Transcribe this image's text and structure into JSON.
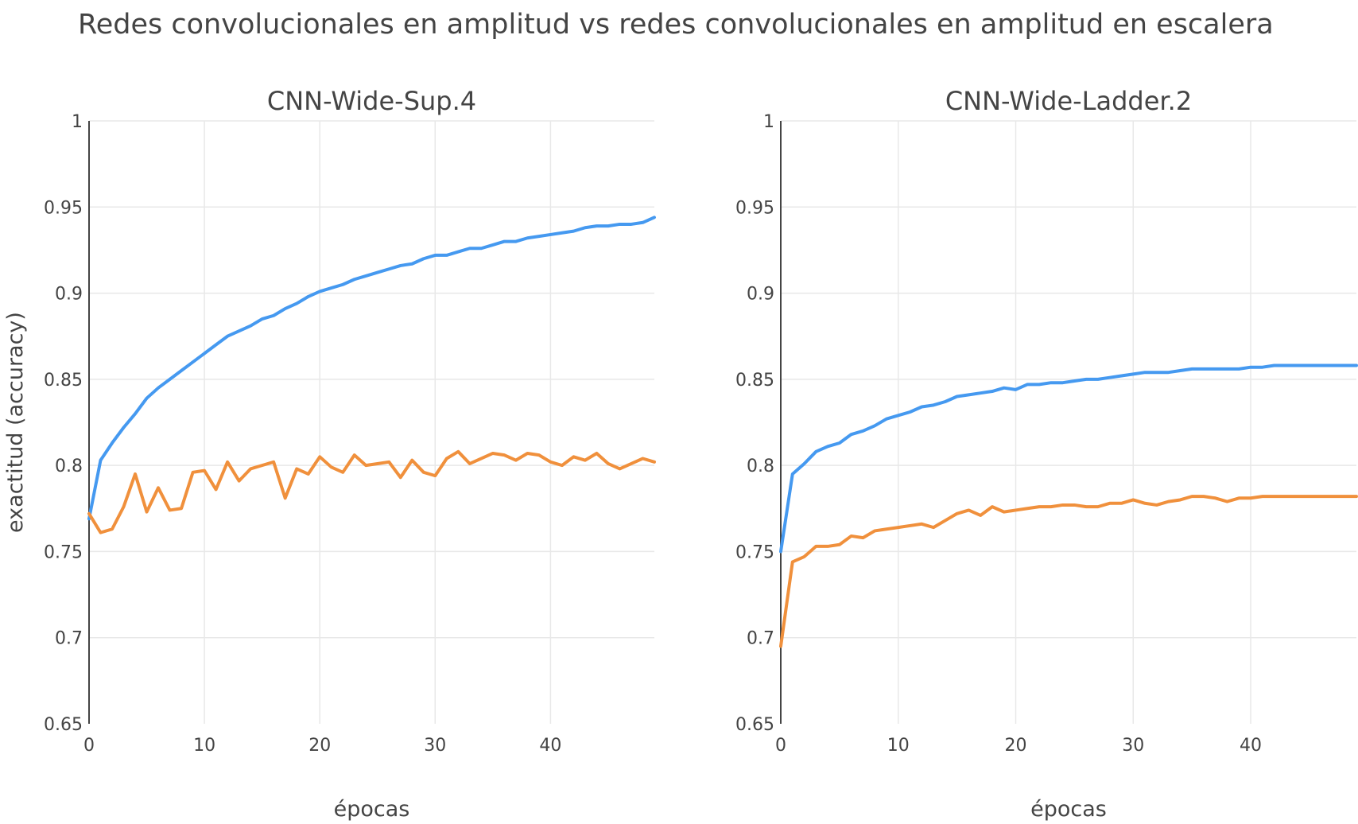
{
  "title": "Redes convolucionales en amplitud vs redes convolucionales en amplitud en escalera",
  "chart_data": [
    {
      "type": "line",
      "title": "CNN-Wide-Sup.4",
      "xlabel": "épocas",
      "ylabel": "exactitud (accuracy)",
      "xlim": [
        0,
        49
      ],
      "ylim": [
        0.65,
        1
      ],
      "xticks": [
        0,
        10,
        20,
        30,
        40
      ],
      "yticks": [
        0.65,
        0.7,
        0.75,
        0.8,
        0.85,
        0.9,
        0.95,
        1
      ],
      "ytick_labels": [
        "0.65",
        "0.7",
        "0.75",
        "0.8",
        "0.85",
        "0.9",
        "0.95",
        "1"
      ],
      "grid": true,
      "series": [
        {
          "color": "#4599f0",
          "x": [
            0,
            1,
            2,
            3,
            4,
            5,
            6,
            7,
            8,
            9,
            10,
            11,
            12,
            13,
            14,
            15,
            16,
            17,
            18,
            19,
            20,
            21,
            22,
            23,
            24,
            25,
            26,
            27,
            28,
            29,
            30,
            31,
            32,
            33,
            34,
            35,
            36,
            37,
            38,
            39,
            40,
            41,
            42,
            43,
            44,
            45,
            46,
            47,
            48,
            49
          ],
          "y": [
            0.769,
            0.803,
            0.813,
            0.822,
            0.83,
            0.839,
            0.845,
            0.85,
            0.855,
            0.86,
            0.865,
            0.87,
            0.875,
            0.878,
            0.881,
            0.885,
            0.887,
            0.891,
            0.894,
            0.898,
            0.901,
            0.903,
            0.905,
            0.908,
            0.91,
            0.912,
            0.914,
            0.916,
            0.917,
            0.92,
            0.922,
            0.922,
            0.924,
            0.926,
            0.926,
            0.928,
            0.93,
            0.93,
            0.932,
            0.933,
            0.934,
            0.935,
            0.936,
            0.938,
            0.939,
            0.939,
            0.94,
            0.94,
            0.941,
            0.944
          ]
        },
        {
          "color": "#f0903c",
          "x": [
            0,
            1,
            2,
            3,
            4,
            5,
            6,
            7,
            8,
            9,
            10,
            11,
            12,
            13,
            14,
            15,
            16,
            17,
            18,
            19,
            20,
            21,
            22,
            23,
            24,
            25,
            26,
            27,
            28,
            29,
            30,
            31,
            32,
            33,
            34,
            35,
            36,
            37,
            38,
            39,
            40,
            41,
            42,
            43,
            44,
            45,
            46,
            47,
            48,
            49
          ],
          "y": [
            0.772,
            0.761,
            0.763,
            0.776,
            0.795,
            0.773,
            0.787,
            0.774,
            0.775,
            0.796,
            0.797,
            0.786,
            0.802,
            0.791,
            0.798,
            0.8,
            0.802,
            0.781,
            0.798,
            0.795,
            0.805,
            0.799,
            0.796,
            0.806,
            0.8,
            0.801,
            0.802,
            0.793,
            0.803,
            0.796,
            0.794,
            0.804,
            0.808,
            0.801,
            0.804,
            0.807,
            0.806,
            0.803,
            0.807,
            0.806,
            0.802,
            0.8,
            0.805,
            0.803,
            0.807,
            0.801,
            0.798,
            0.801,
            0.804,
            0.802
          ]
        }
      ]
    },
    {
      "type": "line",
      "title": "CNN-Wide-Ladder.2",
      "xlabel": "épocas",
      "xlim": [
        0,
        49
      ],
      "ylim": [
        0.65,
        1
      ],
      "xticks": [
        0,
        10,
        20,
        30,
        40
      ],
      "yticks": [
        0.65,
        0.7,
        0.75,
        0.8,
        0.85,
        0.9,
        0.95,
        1
      ],
      "ytick_labels": [
        "0.65",
        "0.7",
        "0.75",
        "0.8",
        "0.85",
        "0.9",
        "0.95",
        "1"
      ],
      "grid": true,
      "series": [
        {
          "color": "#4599f0",
          "x": [
            0,
            1,
            2,
            3,
            4,
            5,
            6,
            7,
            8,
            9,
            10,
            11,
            12,
            13,
            14,
            15,
            16,
            17,
            18,
            19,
            20,
            21,
            22,
            23,
            24,
            25,
            26,
            27,
            28,
            29,
            30,
            31,
            32,
            33,
            34,
            35,
            36,
            37,
            38,
            39,
            40,
            41,
            42,
            43,
            44,
            45,
            46,
            47,
            48,
            49
          ],
          "y": [
            0.75,
            0.795,
            0.801,
            0.808,
            0.811,
            0.813,
            0.818,
            0.82,
            0.823,
            0.827,
            0.829,
            0.831,
            0.834,
            0.835,
            0.837,
            0.84,
            0.841,
            0.842,
            0.843,
            0.845,
            0.844,
            0.847,
            0.847,
            0.848,
            0.848,
            0.849,
            0.85,
            0.85,
            0.851,
            0.852,
            0.853,
            0.854,
            0.854,
            0.854,
            0.855,
            0.856,
            0.856,
            0.856,
            0.856,
            0.856,
            0.857,
            0.857,
            0.858,
            0.858,
            0.858,
            0.858,
            0.858,
            0.858,
            0.858,
            0.858
          ]
        },
        {
          "color": "#f0903c",
          "x": [
            0,
            1,
            2,
            3,
            4,
            5,
            6,
            7,
            8,
            9,
            10,
            11,
            12,
            13,
            14,
            15,
            16,
            17,
            18,
            19,
            20,
            21,
            22,
            23,
            24,
            25,
            26,
            27,
            28,
            29,
            30,
            31,
            32,
            33,
            34,
            35,
            36,
            37,
            38,
            39,
            40,
            41,
            42,
            43,
            44,
            45,
            46,
            47,
            48,
            49
          ],
          "y": [
            0.695,
            0.744,
            0.747,
            0.753,
            0.753,
            0.754,
            0.759,
            0.758,
            0.762,
            0.763,
            0.764,
            0.765,
            0.766,
            0.764,
            0.768,
            0.772,
            0.774,
            0.771,
            0.776,
            0.773,
            0.774,
            0.775,
            0.776,
            0.776,
            0.777,
            0.777,
            0.776,
            0.776,
            0.778,
            0.778,
            0.78,
            0.778,
            0.777,
            0.779,
            0.78,
            0.782,
            0.782,
            0.781,
            0.779,
            0.781,
            0.781,
            0.782,
            0.782,
            0.782,
            0.782,
            0.782,
            0.782,
            0.782,
            0.782,
            0.782
          ]
        }
      ]
    }
  ]
}
